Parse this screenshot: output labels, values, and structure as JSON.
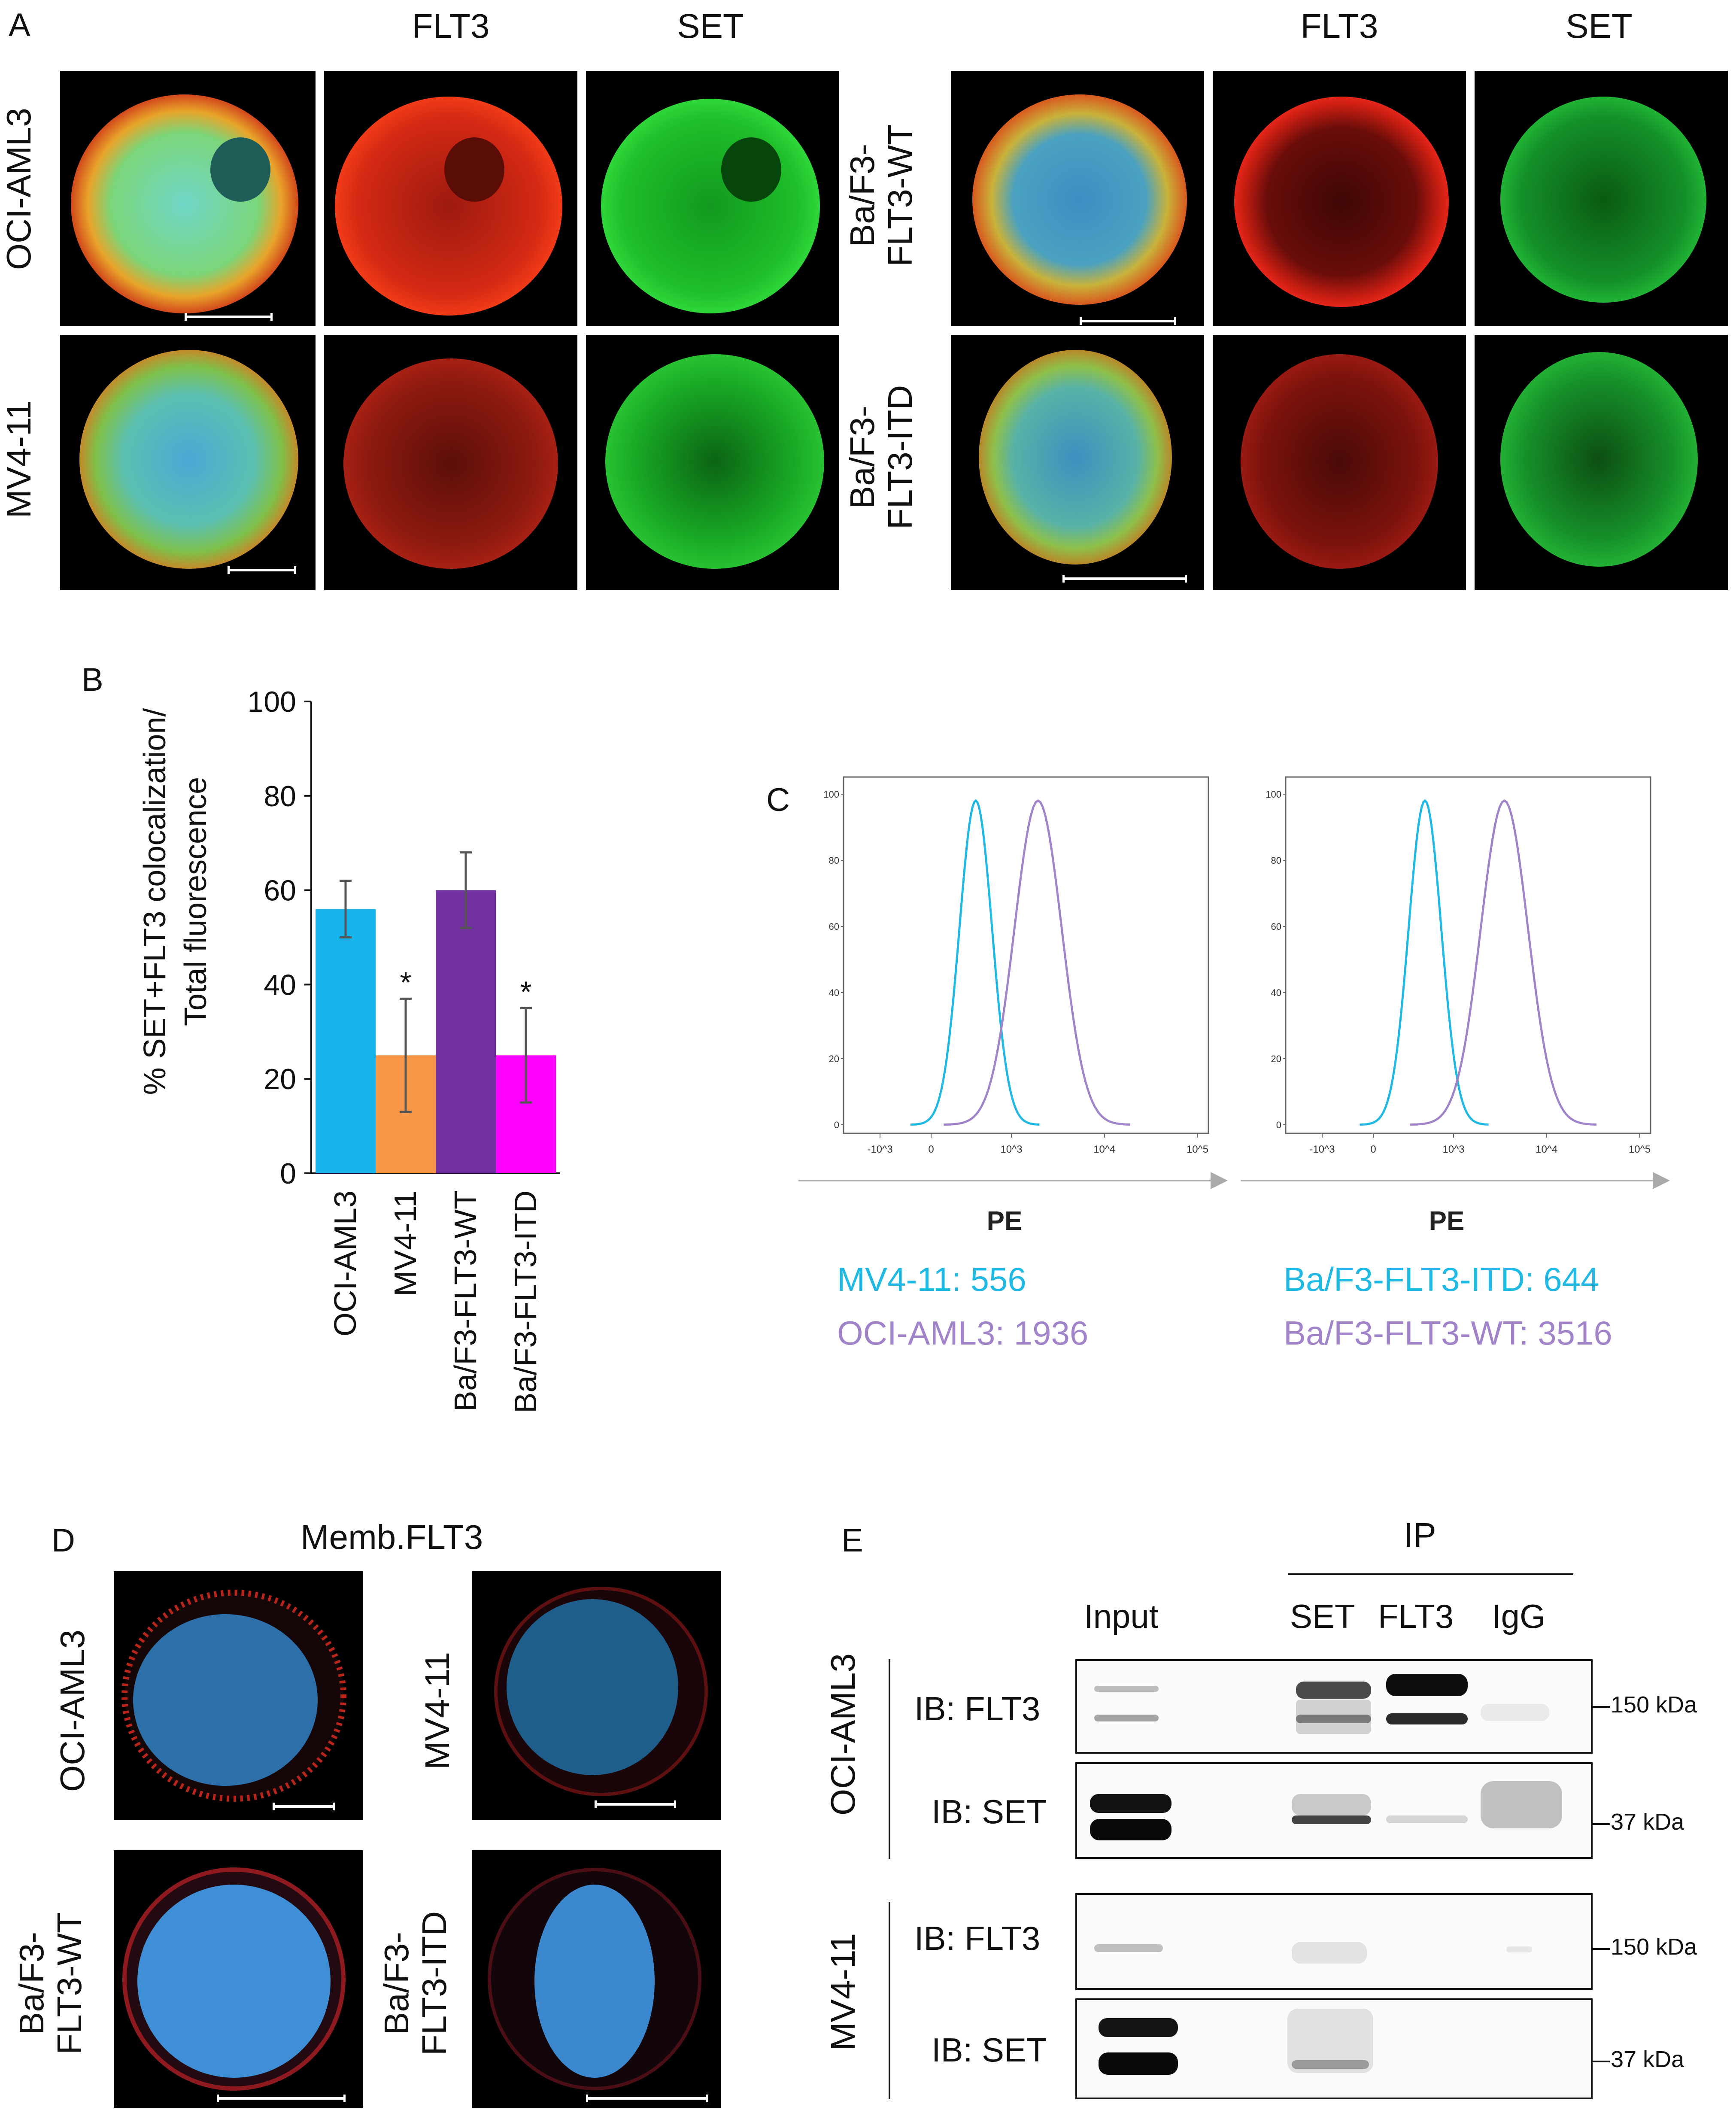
{
  "panelA": {
    "letter": "A",
    "left_headers": [
      "FLT3",
      "SET"
    ],
    "right_headers": [
      "FLT3",
      "SET"
    ],
    "left_rows": [
      "OCI-AML3",
      "MV4-11"
    ],
    "right_rows": [
      [
        "Ba/F3-",
        "FLT3-WT"
      ],
      [
        "Ba/F3-",
        "FLT3-ITD"
      ]
    ]
  },
  "panelB": {
    "letter": "B",
    "chart_data": {
      "type": "bar",
      "categories": [
        "OCI-AML3",
        "MV4-11",
        "Ba/F3-FLT3-WT",
        "Ba/F3-FLT3-ITD"
      ],
      "values": [
        56,
        25,
        60,
        25
      ],
      "errors": [
        6,
        12,
        8,
        10
      ],
      "significance": [
        "",
        "*",
        "",
        "*"
      ],
      "colors": [
        "#16b4ea",
        "#f79646",
        "#7030a0",
        "#ff00ff"
      ],
      "ylabel_lines": [
        "% SET+FLT3 colocalization/",
        "Total fluorescence"
      ],
      "ylim": [
        0,
        100
      ],
      "yticks": [
        "0",
        "20",
        "40",
        "60",
        "80",
        "100"
      ]
    }
  },
  "panelC": {
    "letter": "C",
    "chart_data": [
      {
        "type": "line",
        "xlabel": "PE",
        "x_scale": "biexponential",
        "yticks": [
          "0",
          "20",
          "40",
          "60",
          "80",
          "100"
        ],
        "xticks": [
          "-10^3",
          "0",
          "10^3",
          "10^4",
          "10^5"
        ],
        "series": [
          {
            "name": "MV4-11",
            "mfi": "556",
            "color": "#1fb9e3",
            "peak": 556
          },
          {
            "name": "OCI-AML3",
            "mfi": "1936",
            "color": "#a083c9",
            "peak": 1936
          }
        ],
        "legend": [
          "MV4-11: 556",
          "OCI-AML3: 1936"
        ]
      },
      {
        "type": "line",
        "xlabel": "PE",
        "x_scale": "biexponential",
        "yticks": [
          "0",
          "20",
          "40",
          "60",
          "80",
          "100"
        ],
        "xticks": [
          "-10^3",
          "0",
          "10^3",
          "10^4",
          "10^5"
        ],
        "series": [
          {
            "name": "Ba/F3-FLT3-ITD",
            "mfi": "644",
            "color": "#1fb9e3",
            "peak": 644
          },
          {
            "name": "Ba/F3-FLT3-WT",
            "mfi": "3516",
            "color": "#a083c9",
            "peak": 3516
          }
        ],
        "legend": [
          "Ba/F3-FLT3-ITD: 644",
          "Ba/F3-FLT3-WT: 3516"
        ]
      }
    ]
  },
  "panelD": {
    "letter": "D",
    "title": "Memb.FLT3",
    "labels": [
      [
        "OCI-AML3"
      ],
      [
        "MV4-11"
      ],
      [
        "Ba/F3-",
        "FLT3-WT"
      ],
      [
        "Ba/F3-",
        "FLT3-ITD"
      ]
    ]
  },
  "panelE": {
    "letter": "E",
    "ip_label": "IP",
    "lanes": [
      "Input",
      "SET",
      "FLT3",
      "IgG"
    ],
    "groups": [
      "OCI-AML3",
      "MV4-11"
    ],
    "blots": [
      "IB: FLT3",
      "IB: SET",
      "IB: FLT3",
      "IB: SET"
    ],
    "markers": [
      "150 kDa",
      "37 kDa",
      "150 kDa",
      "37 kDa"
    ]
  }
}
